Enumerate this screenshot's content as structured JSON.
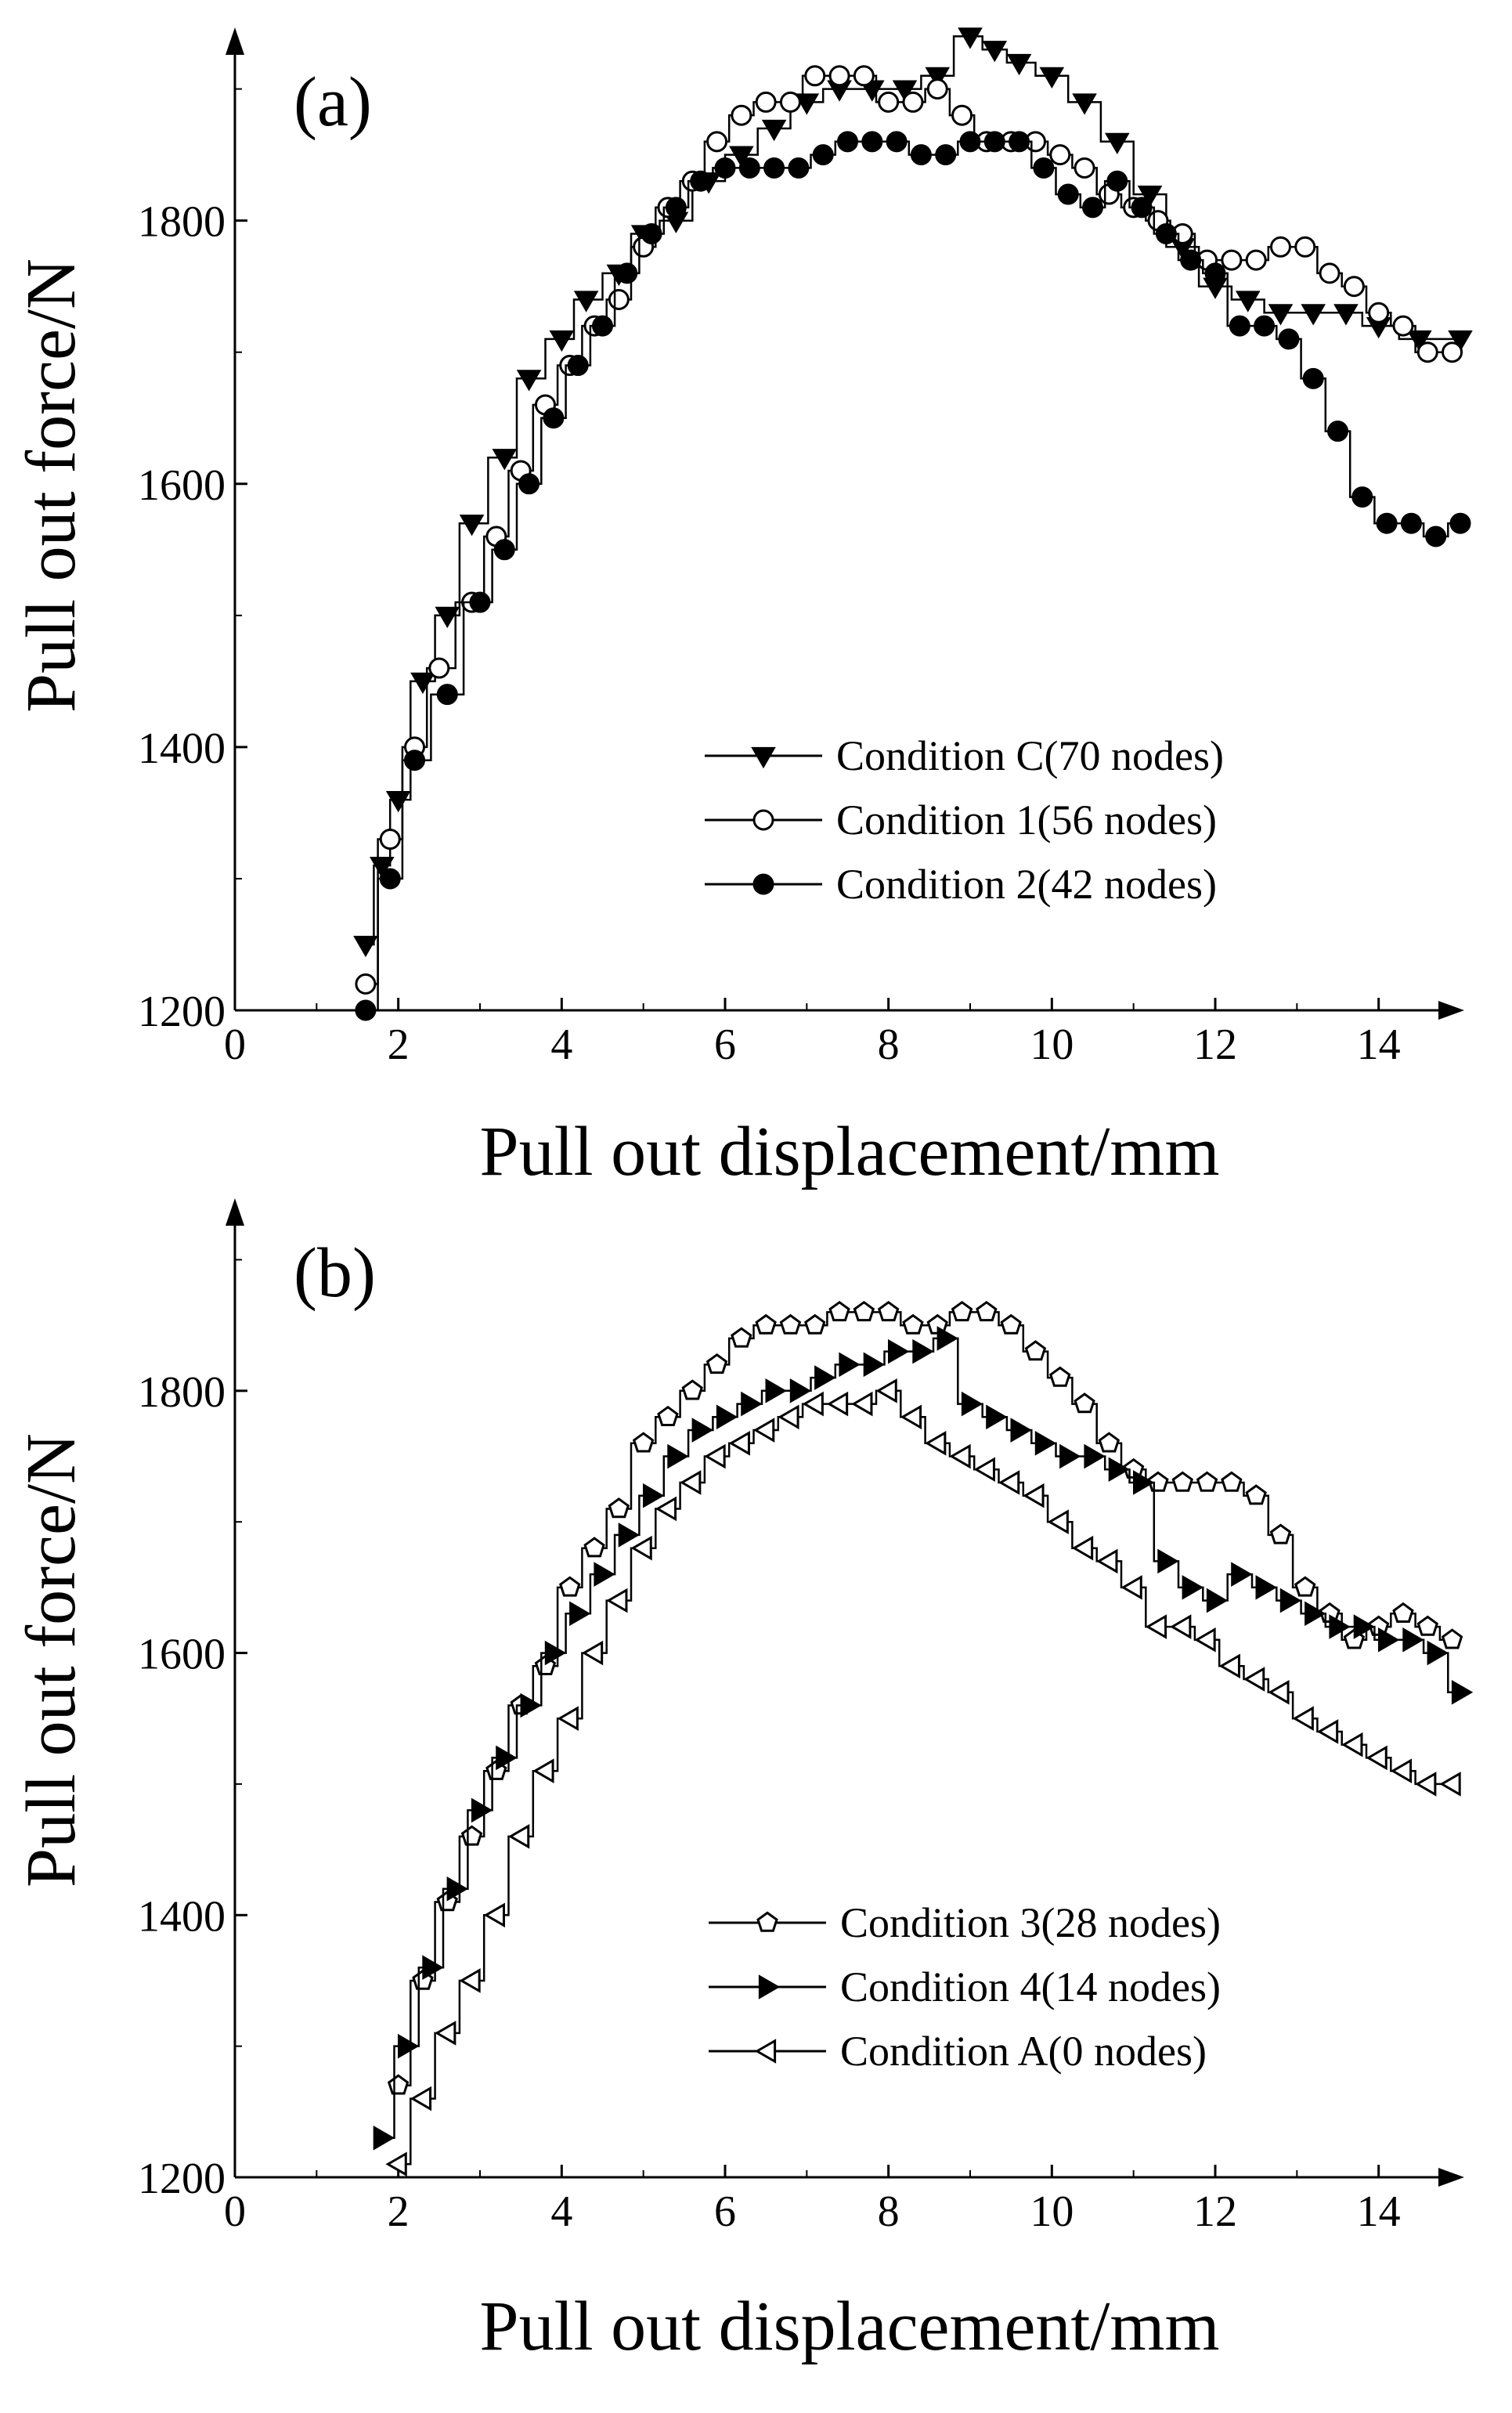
{
  "chart_data": [
    {
      "type": "line",
      "panel_label": "(a)",
      "xlabel": "Pull out displacement/mm",
      "ylabel": "Pull out force/N",
      "xlim": [
        0,
        15
      ],
      "ylim": [
        1200,
        1920
      ],
      "xticks": [
        0,
        2,
        4,
        6,
        8,
        10,
        12,
        14
      ],
      "yticks": [
        1200,
        1400,
        1600,
        1800
      ],
      "legend_position": "lower-right",
      "series": [
        {
          "name": "Condition C(70 nodes)",
          "marker": "triangle-down-filled",
          "x": [
            1.6,
            1.8,
            2.0,
            2.3,
            2.6,
            2.9,
            3.3,
            3.6,
            4.0,
            4.3,
            4.7,
            5.0,
            5.4,
            5.8,
            6.2,
            6.6,
            7.0,
            7.4,
            7.8,
            8.2,
            8.6,
            9.0,
            9.3,
            9.6,
            10.0,
            10.4,
            10.8,
            11.2,
            11.6,
            12.0,
            12.4,
            12.8,
            13.2,
            13.6,
            14.0,
            14.5,
            15.0
          ],
          "y": [
            1250,
            1310,
            1360,
            1450,
            1500,
            1570,
            1620,
            1680,
            1710,
            1740,
            1760,
            1790,
            1800,
            1830,
            1850,
            1870,
            1890,
            1900,
            1900,
            1900,
            1910,
            1940,
            1930,
            1920,
            1910,
            1890,
            1860,
            1820,
            1780,
            1750,
            1740,
            1730,
            1730,
            1730,
            1720,
            1710,
            1710
          ]
        },
        {
          "name": "Condition 1(56 nodes)",
          "marker": "circle-open",
          "x": [
            1.6,
            1.9,
            2.2,
            2.5,
            2.9,
            3.2,
            3.5,
            3.8,
            4.1,
            4.4,
            4.7,
            5.0,
            5.3,
            5.6,
            5.9,
            6.2,
            6.5,
            6.8,
            7.1,
            7.4,
            7.7,
            8.0,
            8.3,
            8.6,
            8.9,
            9.2,
            9.5,
            9.8,
            10.1,
            10.4,
            10.7,
            11.0,
            11.3,
            11.6,
            11.9,
            12.2,
            12.5,
            12.8,
            13.1,
            13.4,
            13.7,
            14.0,
            14.3,
            14.6,
            14.9
          ],
          "y": [
            1220,
            1330,
            1400,
            1460,
            1510,
            1560,
            1610,
            1660,
            1690,
            1720,
            1740,
            1780,
            1810,
            1830,
            1860,
            1880,
            1890,
            1890,
            1910,
            1910,
            1910,
            1890,
            1890,
            1900,
            1880,
            1860,
            1860,
            1860,
            1850,
            1840,
            1820,
            1810,
            1800,
            1790,
            1770,
            1770,
            1770,
            1780,
            1780,
            1760,
            1750,
            1730,
            1720,
            1700,
            1700
          ]
        },
        {
          "name": "Condition 2(42 nodes)",
          "marker": "circle-filled",
          "x": [
            1.6,
            1.9,
            2.2,
            2.6,
            3.0,
            3.3,
            3.6,
            3.9,
            4.2,
            4.5,
            4.8,
            5.1,
            5.4,
            5.7,
            6.0,
            6.3,
            6.6,
            6.9,
            7.2,
            7.5,
            7.8,
            8.1,
            8.4,
            8.7,
            9.0,
            9.3,
            9.6,
            9.9,
            10.2,
            10.5,
            10.8,
            11.1,
            11.4,
            11.7,
            12.0,
            12.3,
            12.6,
            12.9,
            13.2,
            13.5,
            13.8,
            14.1,
            14.4,
            14.7,
            15.0
          ],
          "y": [
            1200,
            1300,
            1390,
            1440,
            1510,
            1550,
            1600,
            1650,
            1690,
            1720,
            1760,
            1790,
            1810,
            1830,
            1840,
            1840,
            1840,
            1840,
            1850,
            1860,
            1860,
            1860,
            1850,
            1850,
            1860,
            1860,
            1860,
            1840,
            1820,
            1810,
            1830,
            1810,
            1790,
            1770,
            1760,
            1720,
            1720,
            1710,
            1680,
            1640,
            1590,
            1570,
            1570,
            1560,
            1570
          ]
        }
      ]
    },
    {
      "type": "line",
      "panel_label": "(b)",
      "xlabel": "Pull out displacement/mm",
      "ylabel": "Pull out force/N",
      "xlim": [
        0,
        15
      ],
      "ylim": [
        1200,
        1920
      ],
      "xticks": [
        0,
        2,
        4,
        6,
        8,
        10,
        12,
        14
      ],
      "yticks": [
        1200,
        1400,
        1600,
        1800
      ],
      "legend_position": "lower-right",
      "series": [
        {
          "name": "Condition 3(28 nodes)",
          "marker": "pentagon-open",
          "x": [
            2.0,
            2.3,
            2.6,
            2.9,
            3.2,
            3.5,
            3.8,
            4.1,
            4.4,
            4.7,
            5.0,
            5.3,
            5.6,
            5.9,
            6.2,
            6.5,
            6.8,
            7.1,
            7.4,
            7.7,
            8.0,
            8.3,
            8.6,
            8.9,
            9.2,
            9.5,
            9.8,
            10.1,
            10.4,
            10.7,
            11.0,
            11.3,
            11.6,
            11.9,
            12.2,
            12.5,
            12.8,
            13.1,
            13.4,
            13.7,
            14.0,
            14.3,
            14.6,
            14.9
          ],
          "y": [
            1270,
            1350,
            1410,
            1460,
            1510,
            1560,
            1590,
            1650,
            1680,
            1710,
            1760,
            1780,
            1800,
            1820,
            1840,
            1850,
            1850,
            1850,
            1860,
            1860,
            1860,
            1850,
            1850,
            1860,
            1860,
            1850,
            1830,
            1810,
            1790,
            1760,
            1740,
            1730,
            1730,
            1730,
            1730,
            1720,
            1690,
            1650,
            1630,
            1610,
            1620,
            1630,
            1620,
            1610
          ]
        },
        {
          "name": "Condition 4(14 nodes)",
          "marker": "triangle-right-filled",
          "x": [
            1.8,
            2.1,
            2.4,
            2.7,
            3.0,
            3.3,
            3.6,
            3.9,
            4.2,
            4.5,
            4.8,
            5.1,
            5.4,
            5.7,
            6.0,
            6.3,
            6.6,
            6.9,
            7.2,
            7.5,
            7.8,
            8.1,
            8.4,
            8.7,
            9.0,
            9.3,
            9.6,
            9.9,
            10.2,
            10.5,
            10.8,
            11.1,
            11.4,
            11.7,
            12.0,
            12.3,
            12.6,
            12.9,
            13.2,
            13.5,
            13.8,
            14.1,
            14.4,
            14.7,
            15.0
          ],
          "y": [
            1230,
            1300,
            1360,
            1420,
            1480,
            1520,
            1560,
            1600,
            1630,
            1660,
            1690,
            1720,
            1750,
            1770,
            1780,
            1790,
            1800,
            1800,
            1810,
            1820,
            1820,
            1830,
            1830,
            1840,
            1790,
            1780,
            1770,
            1760,
            1750,
            1750,
            1740,
            1730,
            1670,
            1650,
            1640,
            1660,
            1650,
            1640,
            1630,
            1620,
            1620,
            1610,
            1610,
            1600,
            1570
          ]
        },
        {
          "name": "Condition A(0 nodes)",
          "marker": "triangle-left-open",
          "x": [
            2.0,
            2.3,
            2.6,
            2.9,
            3.2,
            3.5,
            3.8,
            4.1,
            4.4,
            4.7,
            5.0,
            5.3,
            5.6,
            5.9,
            6.2,
            6.5,
            6.8,
            7.1,
            7.4,
            7.7,
            8.0,
            8.3,
            8.6,
            8.9,
            9.2,
            9.5,
            9.8,
            10.1,
            10.4,
            10.7,
            11.0,
            11.3,
            11.6,
            11.9,
            12.2,
            12.5,
            12.8,
            13.1,
            13.4,
            13.7,
            14.0,
            14.3,
            14.6,
            14.9
          ],
          "y": [
            1210,
            1260,
            1310,
            1350,
            1400,
            1460,
            1510,
            1550,
            1600,
            1640,
            1680,
            1710,
            1730,
            1750,
            1760,
            1770,
            1780,
            1790,
            1790,
            1790,
            1800,
            1780,
            1760,
            1750,
            1740,
            1730,
            1720,
            1700,
            1680,
            1670,
            1650,
            1620,
            1620,
            1610,
            1590,
            1580,
            1570,
            1550,
            1540,
            1530,
            1520,
            1510,
            1500,
            1500
          ]
        }
      ]
    }
  ]
}
